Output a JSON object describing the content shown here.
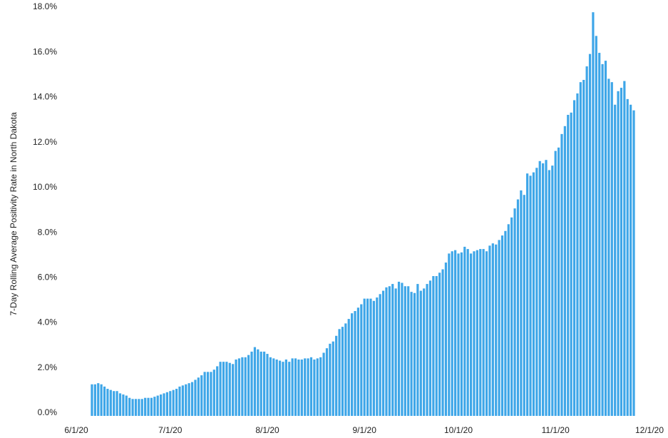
{
  "chart_data": {
    "type": "bar",
    "y_label": "7-Day Rolling Average Positivity Rate in North Dakota",
    "color": "#3ea6e8",
    "categories": [
      "6/1/20",
      null,
      null,
      null,
      null,
      null,
      null,
      null,
      null,
      null,
      null,
      null,
      null,
      null,
      null,
      null,
      null,
      null,
      null,
      null,
      null,
      null,
      null,
      null,
      null,
      null,
      null,
      null,
      null,
      null,
      "7/1/20",
      null,
      null,
      null,
      null,
      null,
      null,
      null,
      null,
      null,
      null,
      null,
      null,
      null,
      null,
      null,
      null,
      null,
      null,
      null,
      null,
      null,
      null,
      null,
      null,
      null,
      null,
      null,
      null,
      null,
      null,
      "8/1/20",
      null,
      null,
      null,
      null,
      null,
      null,
      null,
      null,
      null,
      null,
      null,
      null,
      null,
      null,
      null,
      null,
      null,
      null,
      null,
      null,
      null,
      null,
      null,
      null,
      null,
      null,
      null,
      null,
      null,
      null,
      "9/1/20",
      null,
      null,
      null,
      null,
      null,
      null,
      null,
      null,
      null,
      null,
      null,
      null,
      null,
      null,
      null,
      null,
      null,
      null,
      null,
      null,
      null,
      null,
      null,
      null,
      null,
      null,
      null,
      null,
      null,
      "10/1/20",
      null,
      null,
      null,
      null,
      null,
      null,
      null,
      null,
      null,
      null,
      null,
      null,
      null,
      null,
      null,
      null,
      null,
      null,
      null,
      null,
      null,
      null,
      null,
      null,
      null,
      null,
      null,
      null,
      null,
      null,
      "11/1/20",
      null,
      null,
      null,
      null,
      null,
      null,
      null,
      null,
      null,
      null,
      null,
      null,
      null,
      null,
      null,
      null,
      null,
      null,
      null,
      null,
      null,
      null,
      null,
      null,
      null,
      null,
      null,
      null,
      null,
      "12/1/20"
    ],
    "values": [
      null,
      null,
      null,
      null,
      null,
      1.4,
      1.4,
      1.45,
      1.4,
      1.3,
      1.2,
      1.15,
      1.1,
      1.1,
      1.0,
      0.95,
      0.9,
      0.8,
      0.75,
      0.75,
      0.75,
      0.75,
      0.8,
      0.8,
      0.8,
      0.85,
      0.9,
      0.95,
      1.0,
      1.05,
      1.1,
      1.15,
      1.2,
      1.3,
      1.35,
      1.4,
      1.45,
      1.5,
      1.6,
      1.7,
      1.8,
      1.95,
      1.95,
      1.95,
      2.05,
      2.2,
      2.4,
      2.4,
      2.4,
      2.35,
      2.3,
      2.5,
      2.55,
      2.6,
      2.6,
      2.7,
      2.85,
      3.05,
      2.95,
      2.85,
      2.85,
      2.75,
      2.6,
      2.55,
      2.5,
      2.45,
      2.4,
      2.5,
      2.4,
      2.55,
      2.55,
      2.5,
      2.5,
      2.55,
      2.55,
      2.6,
      2.5,
      2.55,
      2.6,
      2.8,
      3.0,
      3.2,
      3.3,
      3.55,
      3.85,
      3.95,
      4.1,
      4.3,
      4.55,
      4.65,
      4.8,
      4.95,
      5.2,
      5.2,
      5.2,
      5.1,
      5.25,
      5.4,
      5.55,
      5.7,
      5.75,
      5.85,
      5.65,
      5.95,
      5.9,
      5.75,
      5.75,
      5.5,
      5.45,
      5.85,
      5.55,
      5.65,
      5.85,
      6.0,
      6.2,
      6.2,
      6.35,
      6.5,
      6.8,
      7.2,
      7.3,
      7.35,
      7.2,
      7.25,
      7.5,
      7.4,
      7.2,
      7.3,
      7.35,
      7.4,
      7.4,
      7.3,
      7.55,
      7.65,
      7.6,
      7.8,
      8.0,
      8.2,
      8.5,
      8.8,
      9.2,
      9.6,
      10.0,
      9.8,
      10.75,
      10.65,
      10.8,
      11.0,
      11.3,
      11.2,
      11.35,
      10.9,
      11.1,
      11.75,
      11.9,
      12.5,
      12.85,
      13.35,
      13.45,
      14.0,
      14.3,
      14.8,
      14.9,
      15.5,
      16.05,
      17.9,
      16.85,
      16.1,
      15.6,
      15.75,
      14.95,
      14.8,
      13.8,
      14.4,
      14.55,
      14.85,
      14.05,
      13.8,
      13.55,
      null,
      null,
      null,
      null,
      null
    ],
    "ylim": [
      0,
      18
    ],
    "yticks": [
      {
        "value": 0,
        "label": "0.0%"
      },
      {
        "value": 2,
        "label": "2.0%"
      },
      {
        "value": 4,
        "label": "4.0%"
      },
      {
        "value": 6,
        "label": "6.0%"
      },
      {
        "value": 8,
        "label": "8.0%"
      },
      {
        "value": 10,
        "label": "10.0%"
      },
      {
        "value": 12,
        "label": "12.0%"
      },
      {
        "value": 14,
        "label": "14.0%"
      },
      {
        "value": 16,
        "label": "16.0%"
      },
      {
        "value": 18,
        "label": "18.0%"
      }
    ],
    "grid": false
  }
}
